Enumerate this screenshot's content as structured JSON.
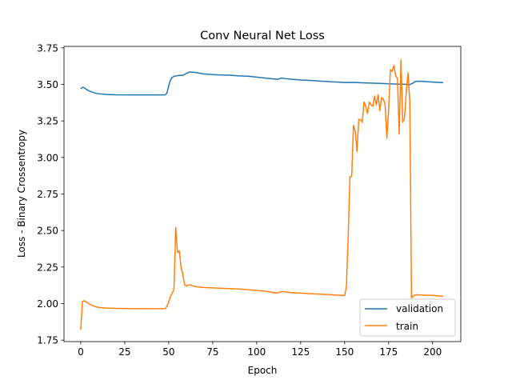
{
  "chart_data": {
    "type": "line",
    "title": "Conv Neural Net Loss",
    "xlabel": "Epoch",
    "ylabel": "Loss - Binary Crossentropy",
    "xlim": [
      -9.5,
      216
    ],
    "ylim": [
      1.74,
      3.76
    ],
    "xticks": [
      0,
      25,
      50,
      75,
      100,
      125,
      150,
      175,
      200
    ],
    "xtick_labels": [
      "0",
      "25",
      "50",
      "75",
      "100",
      "125",
      "150",
      "175",
      "200"
    ],
    "yticks": [
      1.75,
      2.0,
      2.25,
      2.5,
      2.75,
      3.0,
      3.25,
      3.5,
      3.75
    ],
    "ytick_labels": [
      "1.75",
      "2.00",
      "2.25",
      "2.50",
      "2.75",
      "3.00",
      "3.25",
      "3.50",
      "3.75"
    ],
    "grid": false,
    "legend_position": "lower-right",
    "series": [
      {
        "name": "validation",
        "color": "#1f77b4",
        "x": [
          0,
          1,
          2,
          3,
          4,
          6,
          8,
          10,
          15,
          20,
          30,
          40,
          48,
          49,
          50,
          51,
          52,
          53,
          55,
          57,
          58,
          60,
          62,
          65,
          70,
          75,
          80,
          85,
          90,
          95,
          100,
          105,
          110,
          112,
          114,
          116,
          120,
          125,
          130,
          140,
          150,
          155,
          160,
          170,
          180,
          183,
          186,
          187,
          188,
          189,
          190,
          192,
          195,
          200,
          206
        ],
        "y": [
          3.47,
          3.48,
          3.477,
          3.468,
          3.46,
          3.449,
          3.441,
          3.436,
          3.431,
          3.429,
          3.428,
          3.428,
          3.428,
          3.44,
          3.49,
          3.53,
          3.548,
          3.555,
          3.56,
          3.562,
          3.561,
          3.575,
          3.585,
          3.582,
          3.572,
          3.567,
          3.564,
          3.563,
          3.558,
          3.556,
          3.55,
          3.543,
          3.537,
          3.535,
          3.543,
          3.54,
          3.535,
          3.53,
          3.527,
          3.52,
          3.513,
          3.514,
          3.511,
          3.507,
          3.502,
          3.501,
          3.5,
          3.498,
          3.505,
          3.51,
          3.52,
          3.522,
          3.52,
          3.516,
          3.512
        ]
      },
      {
        "name": "train",
        "color": "#ff7f0e",
        "x": [
          0,
          1,
          2,
          3,
          4,
          6,
          8,
          10,
          15,
          20,
          30,
          40,
          48,
          49,
          50,
          51,
          52,
          53,
          54,
          55,
          56,
          57,
          58,
          59,
          60,
          61,
          62,
          63,
          64,
          66,
          70,
          80,
          90,
          95,
          100,
          105,
          110,
          112,
          114,
          116,
          120,
          130,
          140,
          150,
          151,
          152,
          153,
          154,
          155,
          156,
          157,
          158,
          159,
          160,
          161,
          162,
          163,
          164,
          165,
          166,
          167,
          168,
          169,
          170,
          171,
          172,
          173,
          174,
          175,
          176,
          177,
          178,
          179,
          180,
          181,
          182,
          183,
          184,
          185,
          186,
          187,
          188,
          189,
          190,
          191,
          195,
          200,
          206
        ],
        "y": [
          1.82,
          2.015,
          2.02,
          2.012,
          2.005,
          1.99,
          1.98,
          1.974,
          1.969,
          1.967,
          1.966,
          1.965,
          1.966,
          1.98,
          2.01,
          2.05,
          2.07,
          2.1,
          2.52,
          2.35,
          2.36,
          2.25,
          2.2,
          2.13,
          2.12,
          2.125,
          2.13,
          2.125,
          2.12,
          2.115,
          2.11,
          2.105,
          2.1,
          2.095,
          2.09,
          2.085,
          2.075,
          2.073,
          2.082,
          2.08,
          2.075,
          2.068,
          2.062,
          2.055,
          2.12,
          2.45,
          2.87,
          2.87,
          3.22,
          3.18,
          3.04,
          3.26,
          3.26,
          3.24,
          3.38,
          3.35,
          3.3,
          3.38,
          3.36,
          3.35,
          3.42,
          3.36,
          3.43,
          3.32,
          3.41,
          3.4,
          3.36,
          3.13,
          3.33,
          3.6,
          3.59,
          3.63,
          3.56,
          3.54,
          3.16,
          3.67,
          3.24,
          3.27,
          3.45,
          3.58,
          3.39,
          2.04,
          2.05,
          2.06,
          2.06,
          2.058,
          2.056,
          2.05
        ]
      }
    ]
  }
}
